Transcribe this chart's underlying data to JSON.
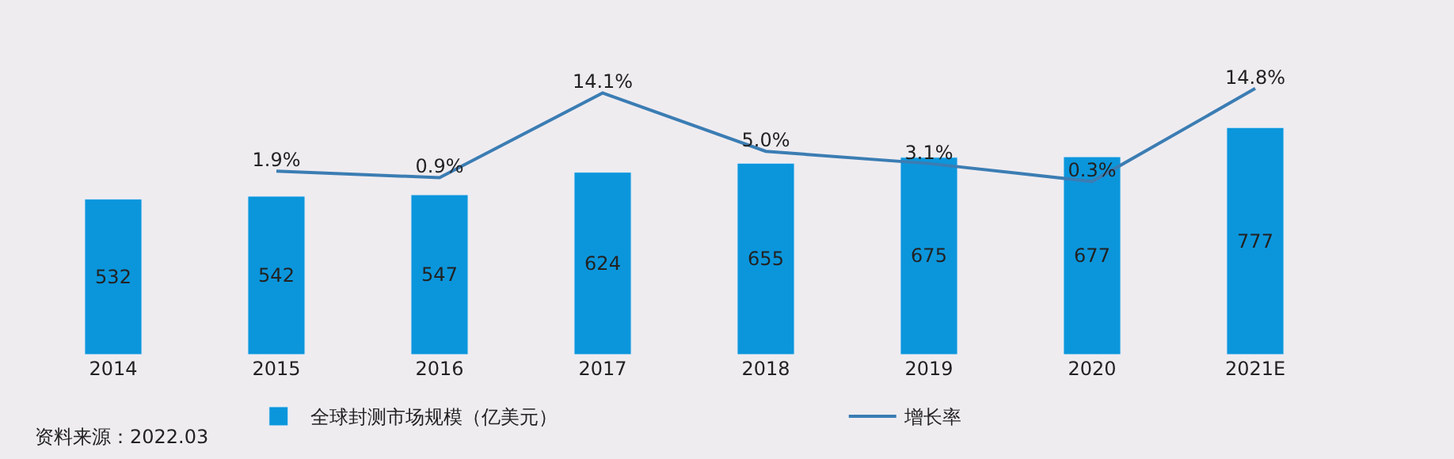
{
  "chart_data": {
    "type": "bar",
    "categories": [
      "2014",
      "2015",
      "2016",
      "2017",
      "2018",
      "2019",
      "2020",
      "2021E"
    ],
    "series": [
      {
        "name": "全球封测市场规模（亿美元）",
        "color": "#0b96dc",
        "values": [
          532,
          542,
          547,
          624,
          655,
          675,
          677,
          777
        ],
        "value_labels": [
          "532",
          "542",
          "547",
          "624",
          "655",
          "675",
          "677",
          "777"
        ]
      },
      {
        "name": "增长率",
        "type": "line",
        "axis": "y2",
        "color": "#3b7db3",
        "values": [
          null,
          1.9,
          0.9,
          14.1,
          5.0,
          3.1,
          0.3,
          14.8
        ],
        "value_labels": [
          null,
          "1.9%",
          "0.9%",
          "14.1%",
          "5.0%",
          "3.1%",
          "0.3%",
          "14.8%"
        ]
      }
    ],
    "legend": "bottom",
    "grid": false,
    "marker": "none",
    "line_style": "solid",
    "annotations": [
      "资料来源：2022.03"
    ]
  }
}
